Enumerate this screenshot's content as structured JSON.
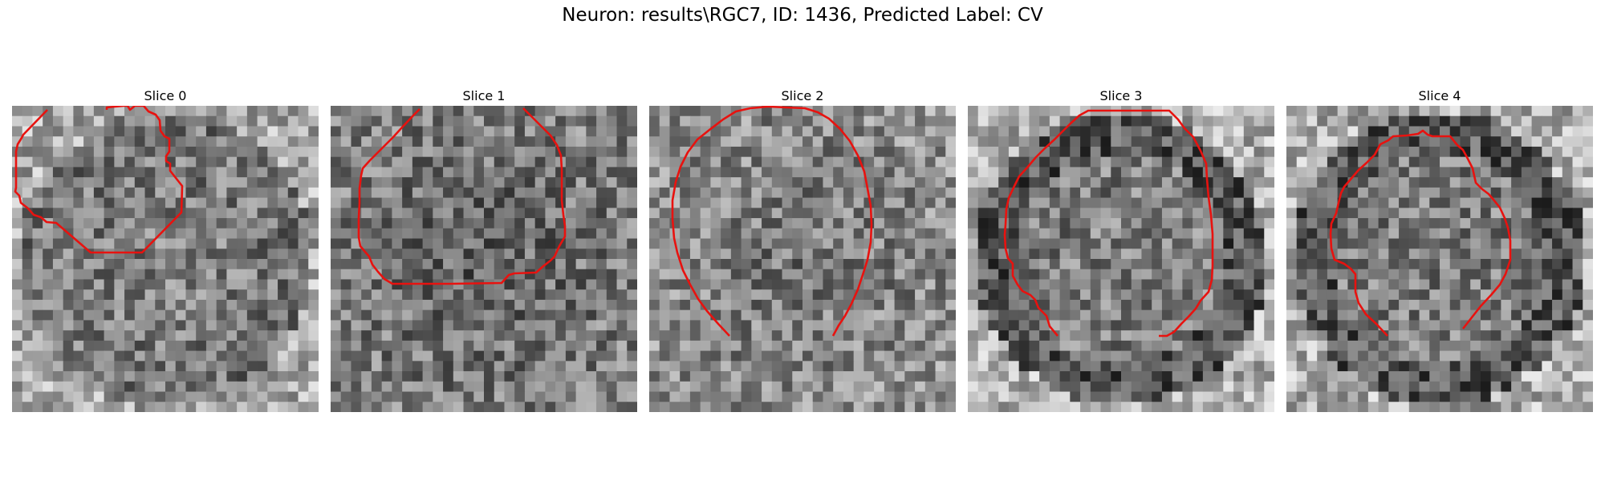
{
  "figure": {
    "title": "Neuron: results\\RGC7, ID: 1436, Predicted Label: CV",
    "contour_color": "#e8120f",
    "colormap": "gray"
  },
  "panels": [
    {
      "title": "Slice 0",
      "seed": 11,
      "outline": "bright-edges-darker-center"
    },
    {
      "title": "Slice 1",
      "seed": 23,
      "outline": "dark-textured"
    },
    {
      "title": "Slice 2",
      "seed": 37,
      "outline": "mid-gray-textured"
    },
    {
      "title": "Slice 3",
      "seed": 51,
      "outline": "bright-edges-dark-ring"
    },
    {
      "title": "Slice 4",
      "seed": 67,
      "outline": "bright-edges-dark-ring"
    }
  ]
}
